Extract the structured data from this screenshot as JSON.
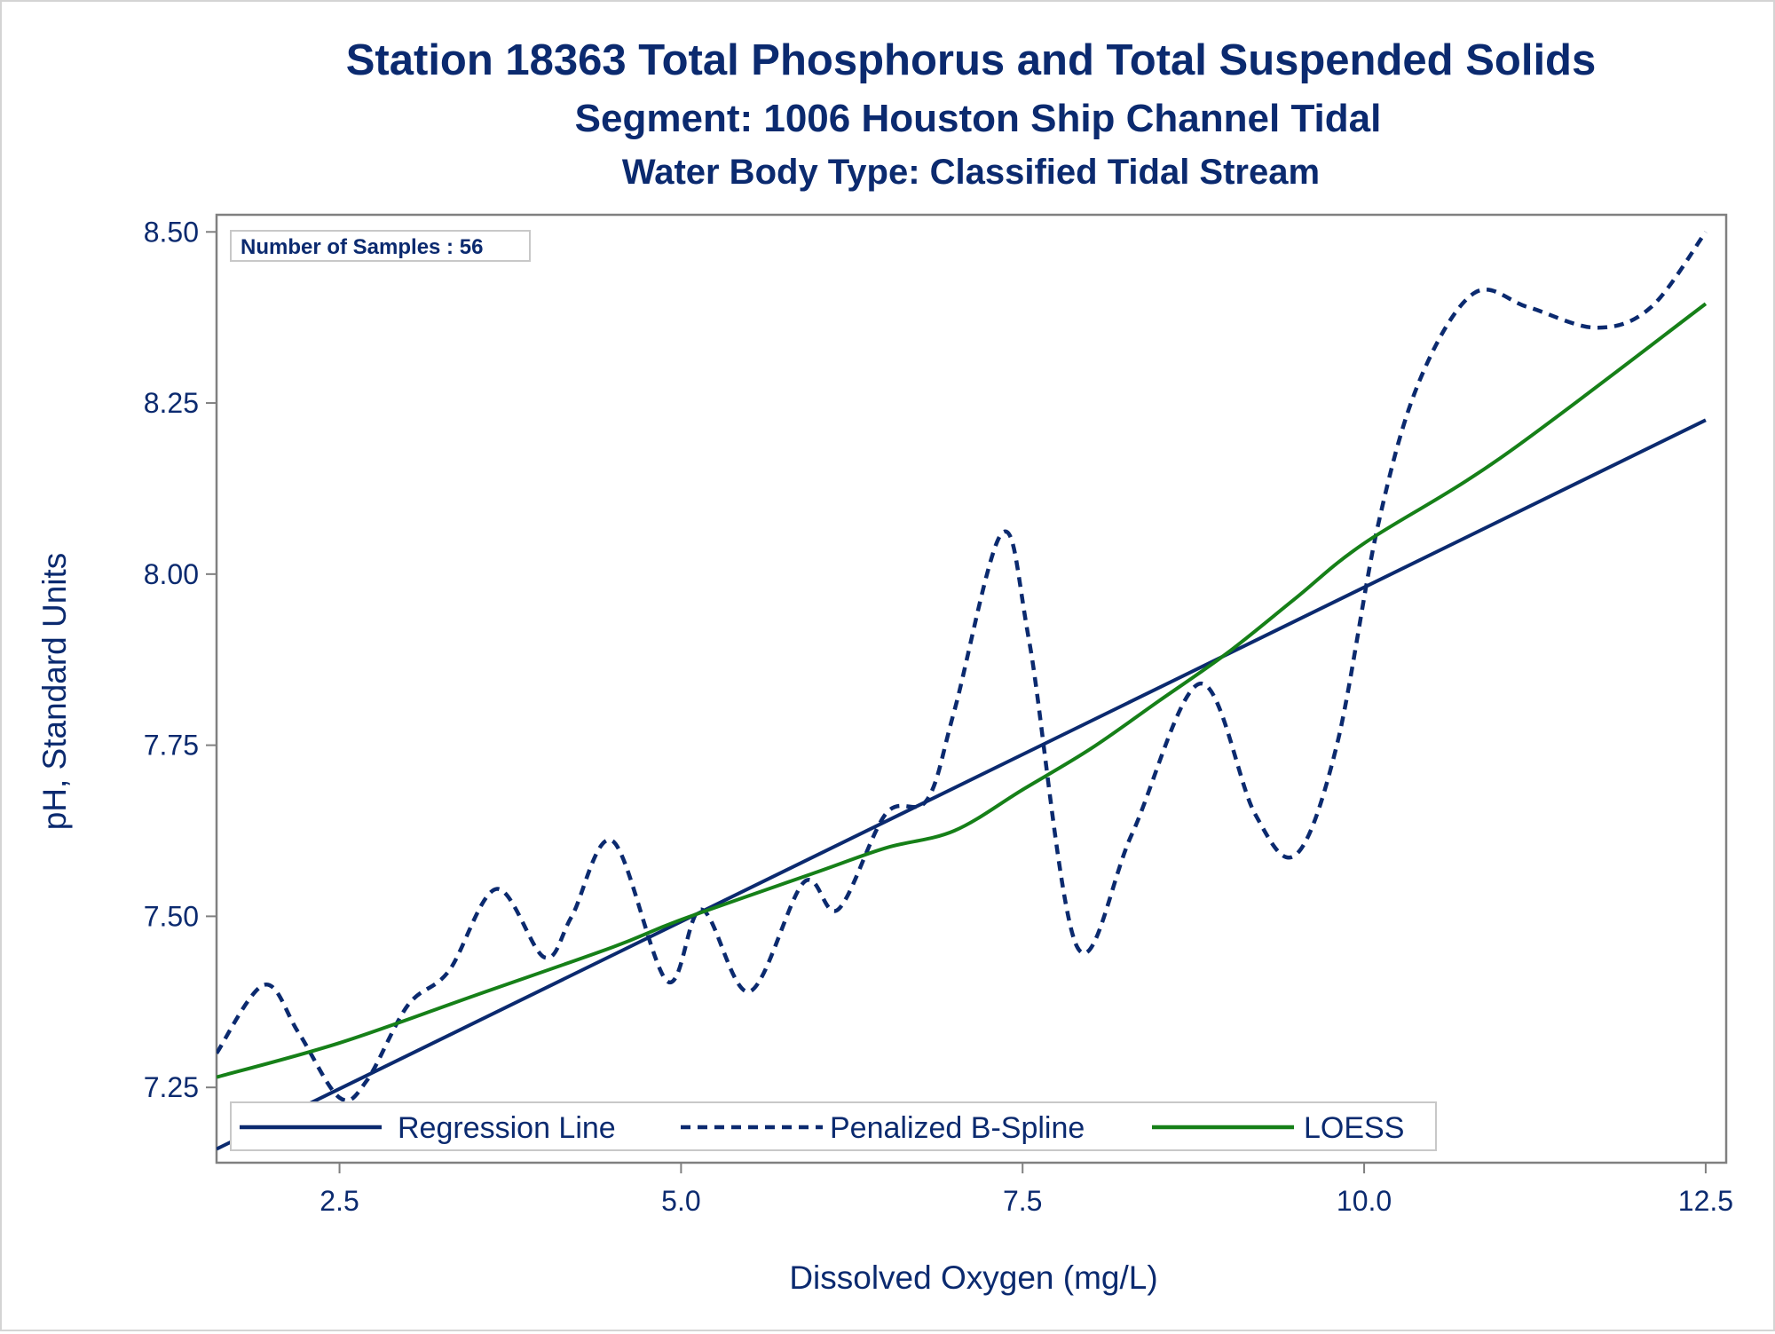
{
  "chart_data": {
    "type": "line",
    "title": "Station 18363  Total Phosphorus and Total Suspended Solids",
    "subtitle": "Segment: 1006  Houston Ship Channel Tidal",
    "subtitle2": "Water Body Type: Classified Tidal Stream",
    "xlabel": "Dissolved Oxygen (mg/L)",
    "ylabel": "pH, Standard Units",
    "annotation": "Number of Samples : 56",
    "xlim": [
      1.6,
      12.65
    ],
    "ylim": [
      7.14,
      8.525
    ],
    "xticks": [
      2.5,
      5.0,
      7.5,
      10.0,
      12.5
    ],
    "xtick_labels": [
      "2.5",
      "5.0",
      "7.5",
      "10.0",
      "12.5"
    ],
    "yticks": [
      7.25,
      7.5,
      7.75,
      8.0,
      8.25,
      8.5
    ],
    "ytick_labels": [
      "7.25",
      "7.50",
      "7.75",
      "8.00",
      "8.25",
      "8.50"
    ],
    "grid": false,
    "legend_position": "bottom-left-inside",
    "colors": {
      "text": "#0b2a6f",
      "axis": "#808080",
      "regression": "#0b2a6f",
      "spline": "#0b2a6f",
      "loess": "#168018"
    },
    "series": [
      {
        "name": "Regression Line",
        "style": "solid",
        "color": "#0b2a6f",
        "x": [
          1.6,
          12.5
        ],
        "y": [
          7.16,
          8.225
        ]
      },
      {
        "name": "Penalized B-Spline",
        "style": "dashed",
        "color": "#0b2a6f",
        "x": [
          1.6,
          1.95,
          2.2,
          2.5,
          2.7,
          3.0,
          3.3,
          3.65,
          4.0,
          4.2,
          4.5,
          4.9,
          5.15,
          5.5,
          5.9,
          6.15,
          6.5,
          6.8,
          7.0,
          7.35,
          7.55,
          7.9,
          8.3,
          8.8,
          9.2,
          9.5,
          9.8,
          10.1,
          10.4,
          10.8,
          11.2,
          11.7,
          12.1,
          12.5
        ],
        "y": [
          7.3,
          7.4,
          7.33,
          7.235,
          7.26,
          7.37,
          7.42,
          7.54,
          7.44,
          7.5,
          7.61,
          7.405,
          7.51,
          7.39,
          7.55,
          7.51,
          7.65,
          7.67,
          7.8,
          8.06,
          7.9,
          7.455,
          7.62,
          7.84,
          7.65,
          7.59,
          7.75,
          8.07,
          8.28,
          8.41,
          8.39,
          8.36,
          8.39,
          8.5
        ]
      },
      {
        "name": "LOESS",
        "style": "solid",
        "color": "#168018",
        "x": [
          1.6,
          2.5,
          3.5,
          4.5,
          5.0,
          6.0,
          6.5,
          7.0,
          7.5,
          8.0,
          8.5,
          9.0,
          9.5,
          10.0,
          11.0,
          12.5
        ],
        "y": [
          7.265,
          7.315,
          7.385,
          7.455,
          7.495,
          7.565,
          7.6,
          7.625,
          7.685,
          7.745,
          7.815,
          7.885,
          7.965,
          8.045,
          8.17,
          8.395
        ]
      }
    ]
  }
}
